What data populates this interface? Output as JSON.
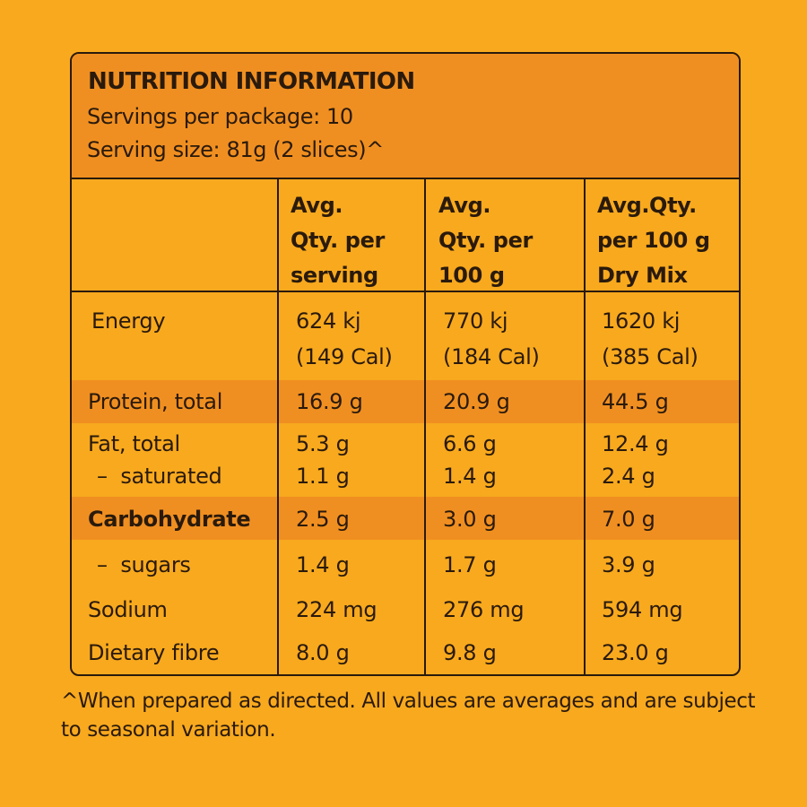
{
  "header": {
    "title": "NUTRITION INFORMATION",
    "servings_per_package": "Servings per package: 10",
    "serving_size": "Serving size: 81g (2 slices)^"
  },
  "columns": [
    "Avg.\nQty. per\nserving",
    "Avg.\nQty. per\n100 g",
    "Avg.Qty.\nper 100 g\nDry Mix"
  ],
  "rows": [
    {
      "label": "Energy",
      "values": [
        "624 kj\n(149 Cal)",
        "770 kj\n(184 Cal)",
        "1620 kj\n(385 Cal)"
      ]
    },
    {
      "label": "Protein, total",
      "values": [
        "16.9 g",
        "20.9 g",
        "44.5 g"
      ]
    },
    {
      "label": "Fat, total",
      "values": [
        "5.3 g",
        "6.6 g",
        "12.4 g"
      ]
    },
    {
      "label": "–  saturated",
      "values": [
        "1.1 g",
        "1.4 g",
        "2.4 g"
      ]
    },
    {
      "label": "Carbohydrate",
      "values": [
        "2.5 g",
        "3.0 g",
        "7.0 g"
      ]
    },
    {
      "label": "–  sugars",
      "values": [
        "1.4 g",
        "1.7 g",
        "3.9 g"
      ]
    },
    {
      "label": "Sodium",
      "values": [
        "224 mg",
        "276 mg",
        "594 mg"
      ]
    },
    {
      "label": "Dietary fibre",
      "values": [
        "8.0 g",
        "9.8 g",
        "23.0 g"
      ]
    }
  ],
  "footnote": "^When prepared as directed. All values are averages and are subject to seasonal variation.",
  "colors": {
    "background": "#F8A91E",
    "highlight_band": "#F08F21",
    "text_and_border": "#2a1a0c"
  }
}
